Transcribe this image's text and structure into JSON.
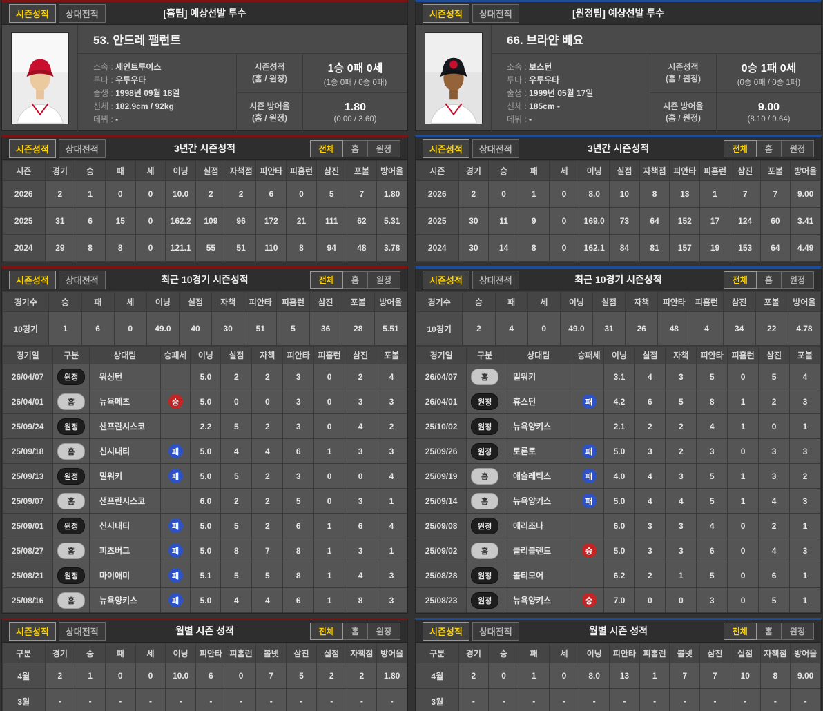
{
  "tabs": {
    "season": "시즌성적",
    "vs": "상대전적"
  },
  "filters": {
    "all": "전체",
    "home": "홈",
    "away": "원정"
  },
  "separator": ":",
  "section_titles": {
    "three_year": "3년간 시즌성적",
    "recent": "최근 10경기 시즌성적",
    "monthly": "월별 시즌 성적"
  },
  "columns": {
    "three_year": [
      "시즌",
      "경기",
      "승",
      "패",
      "세",
      "이닝",
      "실점",
      "자책점",
      "피안타",
      "피홈런",
      "삼진",
      "포볼",
      "방어율"
    ],
    "recent_summary": [
      "경기수",
      "승",
      "패",
      "세",
      "이닝",
      "실점",
      "자책",
      "피안타",
      "피홈런",
      "삼진",
      "포볼",
      "방어율"
    ],
    "recent_log": [
      "경기일",
      "구분",
      "상대팀",
      "승패세",
      "이닝",
      "실점",
      "자책",
      "피안타",
      "피홈런",
      "삼진",
      "포볼"
    ],
    "monthly": [
      "구분",
      "경기",
      "승",
      "패",
      "세",
      "이닝",
      "피안타",
      "피홈런",
      "볼넷",
      "삼진",
      "실점",
      "자책점",
      "방어율"
    ]
  },
  "badges": {
    "home": "홈",
    "away": "원정",
    "win": "승",
    "loss": "패"
  },
  "colors": {
    "home_accent": "#7d1312",
    "away_accent": "#1f4c97",
    "active_tab_text": "#ffd400",
    "win_badge": "#c42424",
    "loss_badge": "#2d52c8"
  },
  "panels": [
    {
      "id": "home",
      "accent": "#7d1312",
      "title": "[홈팀] 예상선발 투수",
      "player": {
        "name": "53. 안드레 팰런트",
        "info": [
          {
            "label": "소속",
            "value": "세인트루이스"
          },
          {
            "label": "투타",
            "value": "우투우타"
          },
          {
            "label": "출생",
            "value": "1998년 09월 18일"
          },
          {
            "label": "신체",
            "value": "182.9cm / 92kg"
          },
          {
            "label": "데뷔",
            "value": "-"
          }
        ],
        "record": {
          "label": "시즌성적",
          "label2": "(홈 / 원정)",
          "main": "1승 0패 0세",
          "sub": "(1승 0패 / 0승 0패)"
        },
        "era": {
          "label": "시즌 방어율",
          "label2": "(홈 / 원정)",
          "main": "1.80",
          "sub": "(0.00 / 3.60)"
        }
      },
      "three_year_rows": [
        [
          "2026",
          "2",
          "1",
          "0",
          "0",
          "10.0",
          "2",
          "2",
          "6",
          "0",
          "5",
          "7",
          "1.80"
        ],
        [
          "2025",
          "31",
          "6",
          "15",
          "0",
          "162.2",
          "109",
          "96",
          "172",
          "21",
          "111",
          "62",
          "5.31"
        ],
        [
          "2024",
          "29",
          "8",
          "8",
          "0",
          "121.1",
          "55",
          "51",
          "110",
          "8",
          "94",
          "48",
          "3.78"
        ]
      ],
      "recent_summary_row": [
        "10경기",
        "1",
        "6",
        "0",
        "49.0",
        "40",
        "30",
        "51",
        "5",
        "36",
        "28",
        "5.51"
      ],
      "recent_log_rows": [
        [
          "26/04/07",
          "원정",
          "워싱턴",
          "",
          "5.0",
          "2",
          "2",
          "3",
          "0",
          "2",
          "4"
        ],
        [
          "26/04/01",
          "홈",
          "뉴욕메츠",
          "승",
          "5.0",
          "0",
          "0",
          "3",
          "0",
          "3",
          "3"
        ],
        [
          "25/09/24",
          "원정",
          "샌프란시스코",
          "",
          "2.2",
          "5",
          "2",
          "3",
          "0",
          "4",
          "2"
        ],
        [
          "25/09/18",
          "홈",
          "신시내티",
          "패",
          "5.0",
          "4",
          "4",
          "6",
          "1",
          "3",
          "3"
        ],
        [
          "25/09/13",
          "원정",
          "밀워키",
          "패",
          "5.0",
          "5",
          "2",
          "3",
          "0",
          "0",
          "4"
        ],
        [
          "25/09/07",
          "홈",
          "샌프란시스코",
          "",
          "6.0",
          "2",
          "2",
          "5",
          "0",
          "3",
          "1"
        ],
        [
          "25/09/01",
          "원정",
          "신시내티",
          "패",
          "5.0",
          "5",
          "2",
          "6",
          "1",
          "6",
          "4"
        ],
        [
          "25/08/27",
          "홈",
          "피츠버그",
          "패",
          "5.0",
          "8",
          "7",
          "8",
          "1",
          "3",
          "1"
        ],
        [
          "25/08/21",
          "원정",
          "마이애미",
          "패",
          "5.1",
          "5",
          "5",
          "8",
          "1",
          "4",
          "3"
        ],
        [
          "25/08/16",
          "홈",
          "뉴욕양키스",
          "패",
          "5.0",
          "4",
          "4",
          "6",
          "1",
          "8",
          "3"
        ]
      ],
      "monthly_rows": [
        [
          "4월",
          "2",
          "1",
          "0",
          "0",
          "10.0",
          "6",
          "0",
          "7",
          "5",
          "2",
          "2",
          "1.80"
        ],
        [
          "3월",
          "-",
          "-",
          "-",
          "-",
          "-",
          "-",
          "-",
          "-",
          "-",
          "-",
          "-",
          "-"
        ]
      ]
    },
    {
      "id": "away",
      "accent": "#1f4c97",
      "title": "[원정팀] 예상선발 투수",
      "player": {
        "name": "66. 브라얀 베요",
        "info": [
          {
            "label": "소속",
            "value": "보스턴"
          },
          {
            "label": "투타",
            "value": "우투우타"
          },
          {
            "label": "출생",
            "value": "1999년 05월 17일"
          },
          {
            "label": "신체",
            "value": "185cm -"
          },
          {
            "label": "데뷔",
            "value": "-"
          }
        ],
        "record": {
          "label": "시즌성적",
          "label2": "(홈 / 원정)",
          "main": "0승 1패 0세",
          "sub": "(0승 0패 / 0승 1패)"
        },
        "era": {
          "label": "시즌 방어율",
          "label2": "(홈 / 원정)",
          "main": "9.00",
          "sub": "(8.10 / 9.64)"
        }
      },
      "three_year_rows": [
        [
          "2026",
          "2",
          "0",
          "1",
          "0",
          "8.0",
          "10",
          "8",
          "13",
          "1",
          "7",
          "7",
          "9.00"
        ],
        [
          "2025",
          "30",
          "11",
          "9",
          "0",
          "169.0",
          "73",
          "64",
          "152",
          "17",
          "124",
          "60",
          "3.41"
        ],
        [
          "2024",
          "30",
          "14",
          "8",
          "0",
          "162.1",
          "84",
          "81",
          "157",
          "19",
          "153",
          "64",
          "4.49"
        ]
      ],
      "recent_summary_row": [
        "10경기",
        "2",
        "4",
        "0",
        "49.0",
        "31",
        "26",
        "48",
        "4",
        "34",
        "22",
        "4.78"
      ],
      "recent_log_rows": [
        [
          "26/04/07",
          "홈",
          "밀워키",
          "",
          "3.1",
          "4",
          "3",
          "5",
          "0",
          "5",
          "4"
        ],
        [
          "26/04/01",
          "원정",
          "휴스턴",
          "패",
          "4.2",
          "6",
          "5",
          "8",
          "1",
          "2",
          "3"
        ],
        [
          "25/10/02",
          "원정",
          "뉴욕양키스",
          "",
          "2.1",
          "2",
          "2",
          "4",
          "1",
          "0",
          "1"
        ],
        [
          "25/09/26",
          "원정",
          "토론토",
          "패",
          "5.0",
          "3",
          "2",
          "3",
          "0",
          "3",
          "3"
        ],
        [
          "25/09/19",
          "홈",
          "애슬레틱스",
          "패",
          "4.0",
          "4",
          "3",
          "5",
          "1",
          "3",
          "2"
        ],
        [
          "25/09/14",
          "홈",
          "뉴욕양키스",
          "패",
          "5.0",
          "4",
          "4",
          "5",
          "1",
          "4",
          "3"
        ],
        [
          "25/09/08",
          "원정",
          "에리조나",
          "",
          "6.0",
          "3",
          "3",
          "4",
          "0",
          "2",
          "1"
        ],
        [
          "25/09/02",
          "홈",
          "클리블랜드",
          "승",
          "5.0",
          "3",
          "3",
          "6",
          "0",
          "4",
          "3"
        ],
        [
          "25/08/28",
          "원정",
          "볼티모어",
          "",
          "6.2",
          "2",
          "1",
          "5",
          "0",
          "6",
          "1"
        ],
        [
          "25/08/23",
          "원정",
          "뉴욕양키스",
          "승",
          "7.0",
          "0",
          "0",
          "3",
          "0",
          "5",
          "1"
        ]
      ],
      "monthly_rows": [
        [
          "4월",
          "2",
          "0",
          "1",
          "0",
          "8.0",
          "13",
          "1",
          "7",
          "7",
          "10",
          "8",
          "9.00"
        ],
        [
          "3월",
          "-",
          "-",
          "-",
          "-",
          "-",
          "-",
          "-",
          "-",
          "-",
          "-",
          "-",
          "-"
        ]
      ]
    }
  ]
}
